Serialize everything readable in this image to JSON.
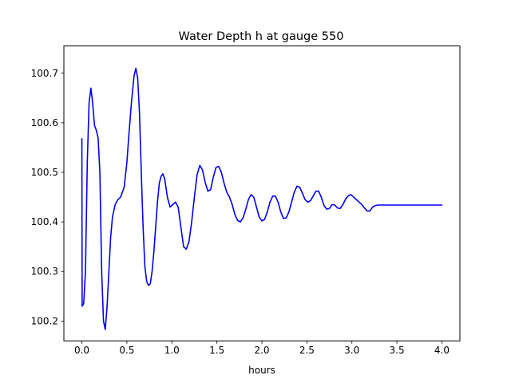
{
  "chart_data": {
    "type": "line",
    "title": "Water Depth h at gauge 550",
    "xlabel": "hours",
    "ylabel": "",
    "xlim": [
      -0.2,
      4.2
    ],
    "ylim": [
      100.16,
      100.755
    ],
    "xticks": [
      0.0,
      0.5,
      1.0,
      1.5,
      2.0,
      2.5,
      3.0,
      3.5,
      4.0
    ],
    "xtick_labels": [
      "0.0",
      "0.5",
      "1.0",
      "1.5",
      "2.0",
      "2.5",
      "3.0",
      "3.5",
      "4.0"
    ],
    "yticks": [
      100.2,
      100.3,
      100.4,
      100.5,
      100.6,
      100.7
    ],
    "ytick_labels": [
      "100.2",
      "100.3",
      "100.4",
      "100.5",
      "100.6",
      "100.7"
    ],
    "grid": false,
    "series": [
      {
        "color": "#0000ff",
        "x": [
          0.0,
          0.003,
          0.01,
          0.02,
          0.04,
          0.06,
          0.08,
          0.1,
          0.12,
          0.14,
          0.16,
          0.18,
          0.2,
          0.22,
          0.24,
          0.26,
          0.28,
          0.3,
          0.32,
          0.34,
          0.37,
          0.4,
          0.43,
          0.47,
          0.5,
          0.52,
          0.55,
          0.58,
          0.6,
          0.62,
          0.64,
          0.66,
          0.68,
          0.7,
          0.72,
          0.74,
          0.76,
          0.78,
          0.8,
          0.82,
          0.84,
          0.86,
          0.88,
          0.9,
          0.92,
          0.95,
          0.98,
          1.01,
          1.04,
          1.07,
          1.1,
          1.13,
          1.16,
          1.19,
          1.22,
          1.25,
          1.28,
          1.31,
          1.34,
          1.37,
          1.4,
          1.43,
          1.46,
          1.49,
          1.52,
          1.55,
          1.58,
          1.61,
          1.64,
          1.67,
          1.7,
          1.73,
          1.76,
          1.79,
          1.82,
          1.85,
          1.88,
          1.91,
          1.94,
          1.97,
          2.0,
          2.03,
          2.06,
          2.09,
          2.12,
          2.15,
          2.18,
          2.21,
          2.24,
          2.27,
          2.3,
          2.33,
          2.36,
          2.39,
          2.42,
          2.45,
          2.48,
          2.51,
          2.54,
          2.57,
          2.6,
          2.63,
          2.66,
          2.69,
          2.72,
          2.75,
          2.78,
          2.81,
          2.84,
          2.87,
          2.9,
          2.93,
          2.96,
          2.99,
          3.02,
          3.05,
          3.08,
          3.11,
          3.14,
          3.17,
          3.2,
          3.23,
          3.26,
          3.29,
          3.32,
          3.35,
          3.38,
          3.41,
          3.44,
          3.47,
          3.5,
          3.53,
          3.56,
          3.59,
          3.62,
          3.65,
          3.68,
          3.71,
          3.74,
          3.77,
          3.8,
          3.83,
          3.86,
          3.89,
          3.92,
          3.95,
          3.98,
          4.0
        ],
        "y": [
          100.568,
          100.23,
          100.232,
          100.235,
          100.3,
          100.52,
          100.64,
          100.67,
          100.64,
          100.595,
          100.585,
          100.57,
          100.5,
          100.3,
          100.2,
          100.183,
          100.23,
          100.3,
          100.37,
          100.41,
          100.435,
          100.445,
          100.45,
          100.47,
          100.52,
          100.57,
          100.64,
          100.695,
          100.71,
          100.69,
          100.62,
          100.5,
          100.39,
          100.31,
          100.28,
          100.272,
          100.275,
          100.3,
          100.34,
          100.39,
          100.44,
          100.478,
          100.492,
          100.497,
          100.487,
          100.45,
          100.43,
          100.435,
          100.44,
          100.43,
          100.39,
          100.35,
          100.345,
          100.36,
          100.4,
          100.45,
          100.495,
          100.514,
          100.505,
          100.48,
          100.462,
          100.465,
          100.49,
          100.51,
          100.512,
          100.5,
          100.478,
          100.46,
          100.45,
          100.435,
          100.415,
          100.403,
          100.4,
          100.408,
          100.425,
          100.445,
          100.455,
          100.45,
          100.43,
          100.41,
          100.402,
          100.405,
          100.42,
          100.44,
          100.452,
          100.452,
          100.44,
          100.42,
          100.407,
          100.408,
          100.42,
          100.44,
          100.46,
          100.472,
          100.47,
          100.458,
          100.445,
          100.44,
          100.443,
          100.452,
          100.462,
          100.462,
          100.45,
          100.433,
          100.426,
          100.427,
          100.435,
          100.434,
          100.428,
          100.427,
          100.435,
          100.446,
          100.453,
          100.455,
          100.45,
          100.445,
          100.44,
          100.435,
          100.428,
          100.422,
          100.422,
          100.43,
          100.433,
          100.434,
          100.434,
          100.434,
          100.434,
          100.434,
          100.434,
          100.434,
          100.434,
          100.434,
          100.434,
          100.434,
          100.434,
          100.434,
          100.434,
          100.434,
          100.434,
          100.434,
          100.434,
          100.434,
          100.434,
          100.434,
          100.434,
          100.434,
          100.434,
          100.434
        ]
      }
    ]
  }
}
